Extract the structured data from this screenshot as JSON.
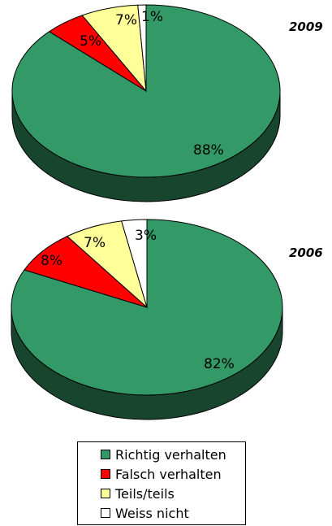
{
  "chart_data": [
    {
      "type": "pie",
      "title": "2009",
      "categories": [
        "Richtig verhalten",
        "Falsch verhalten",
        "Teils/teils",
        "Weiss nicht"
      ],
      "values": [
        88,
        5,
        7,
        1
      ],
      "labels": [
        "88%",
        "5%",
        "7%",
        "1%"
      ],
      "colors": [
        "#339966",
        "#ff0000",
        "#ffff99",
        "#ffffff"
      ],
      "three_d": true
    },
    {
      "type": "pie",
      "title": "2006",
      "categories": [
        "Richtig verhalten",
        "Falsch verhalten",
        "Teils/teils",
        "Weiss nicht"
      ],
      "values": [
        82,
        8,
        7,
        3
      ],
      "labels": [
        "82%",
        "8%",
        "7%",
        "3%"
      ],
      "colors": [
        "#339966",
        "#ff0000",
        "#ffff99",
        "#ffffff"
      ],
      "three_d": true
    }
  ],
  "legend": {
    "items": [
      {
        "label": "Richtig verhalten",
        "color": "#339966"
      },
      {
        "label": "Falsch verhalten",
        "color": "#ff0000"
      },
      {
        "label": "Teils/teils",
        "color": "#ffff99"
      },
      {
        "label": "Weiss nicht",
        "color": "#ffffff"
      }
    ]
  }
}
